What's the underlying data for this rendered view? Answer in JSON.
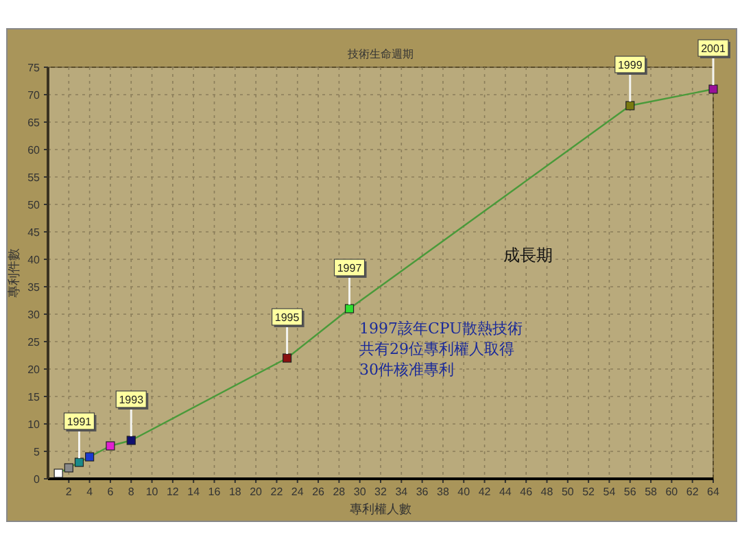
{
  "chart_data": {
    "type": "line",
    "title": "技術生命週期",
    "xlabel": "專利權人數",
    "ylabel": "專利件數",
    "x": [
      1,
      2,
      3,
      4,
      6,
      8,
      23,
      29,
      56,
      64
    ],
    "series": [
      {
        "color": "#4a9a3a",
        "values": [
          1,
          2,
          3,
          4,
          6,
          7,
          22,
          31,
          68,
          71
        ],
        "colors": [
          "#ffffff",
          "#8a8a8a",
          "#1a8a8a",
          "#1a3ad0",
          "#e020d0",
          "#101070",
          "#8a1010",
          "#30e030",
          "#7a7a10",
          "#9a109a"
        ]
      }
    ],
    "xlim": [
      0,
      64
    ],
    "ylim": [
      0,
      75
    ],
    "xticks": [
      2,
      4,
      6,
      8,
      10,
      12,
      14,
      16,
      18,
      20,
      22,
      24,
      26,
      28,
      30,
      32,
      34,
      36,
      38,
      40,
      42,
      44,
      46,
      48,
      50,
      52,
      54,
      56,
      58,
      60,
      62,
      64
    ],
    "yticks": [
      0,
      5,
      10,
      15,
      20,
      25,
      30,
      35,
      40,
      45,
      50,
      55,
      60,
      65,
      70,
      75
    ],
    "grid": true,
    "marker": "square",
    "line_style": "solid",
    "annotations": [
      "成長期",
      "1997該年CPU散熱技術",
      "共有29位專利權人取得",
      "30件核准專利",
      {
        "text": "1991",
        "x": 3,
        "y": 3
      },
      {
        "text": "1993",
        "x": 8,
        "y": 7
      },
      {
        "text": "1995",
        "x": 23,
        "y": 22
      },
      {
        "text": "1997",
        "x": 29,
        "y": 31
      },
      {
        "text": "1999",
        "x": 56,
        "y": 68
      },
      {
        "text": "2001",
        "x": 64,
        "y": 71
      }
    ]
  }
}
